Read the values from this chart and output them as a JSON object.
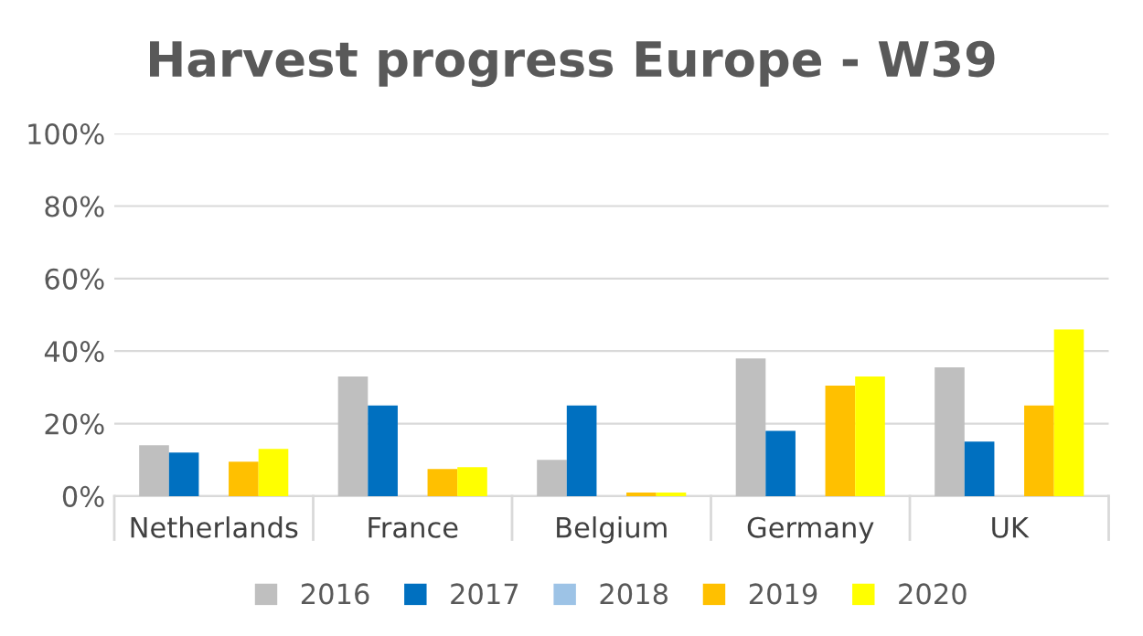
{
  "chart_data": {
    "type": "bar",
    "title": "Harvest progress Europe - W39",
    "categories": [
      "Netherlands",
      "France",
      "Belgium",
      "Germany",
      "UK"
    ],
    "series": [
      {
        "name": "2016",
        "color": "#bfbfbf",
        "values": [
          14,
          33,
          10,
          38,
          35.5
        ]
      },
      {
        "name": "2017",
        "color": "#0070c0",
        "values": [
          12,
          25,
          25,
          18,
          15
        ]
      },
      {
        "name": "2018",
        "color": "#9dc3e6",
        "values": [
          0,
          0,
          0,
          0,
          0
        ]
      },
      {
        "name": "2019",
        "color": "#ffc000",
        "values": [
          9.5,
          7.5,
          1,
          30.5,
          25
        ]
      },
      {
        "name": "2020",
        "color": "#ffff00",
        "values": [
          13,
          8,
          1,
          33,
          46
        ]
      }
    ],
    "ylim": [
      0,
      100
    ],
    "yticks": [
      {
        "value": 0,
        "label": "0%"
      },
      {
        "value": 20,
        "label": "20%"
      },
      {
        "value": 40,
        "label": "40%"
      },
      {
        "value": 60,
        "label": "60%"
      },
      {
        "value": 80,
        "label": "80%"
      },
      {
        "value": 100,
        "label": "100%"
      }
    ],
    "grid": "y",
    "legend": "bottom"
  }
}
